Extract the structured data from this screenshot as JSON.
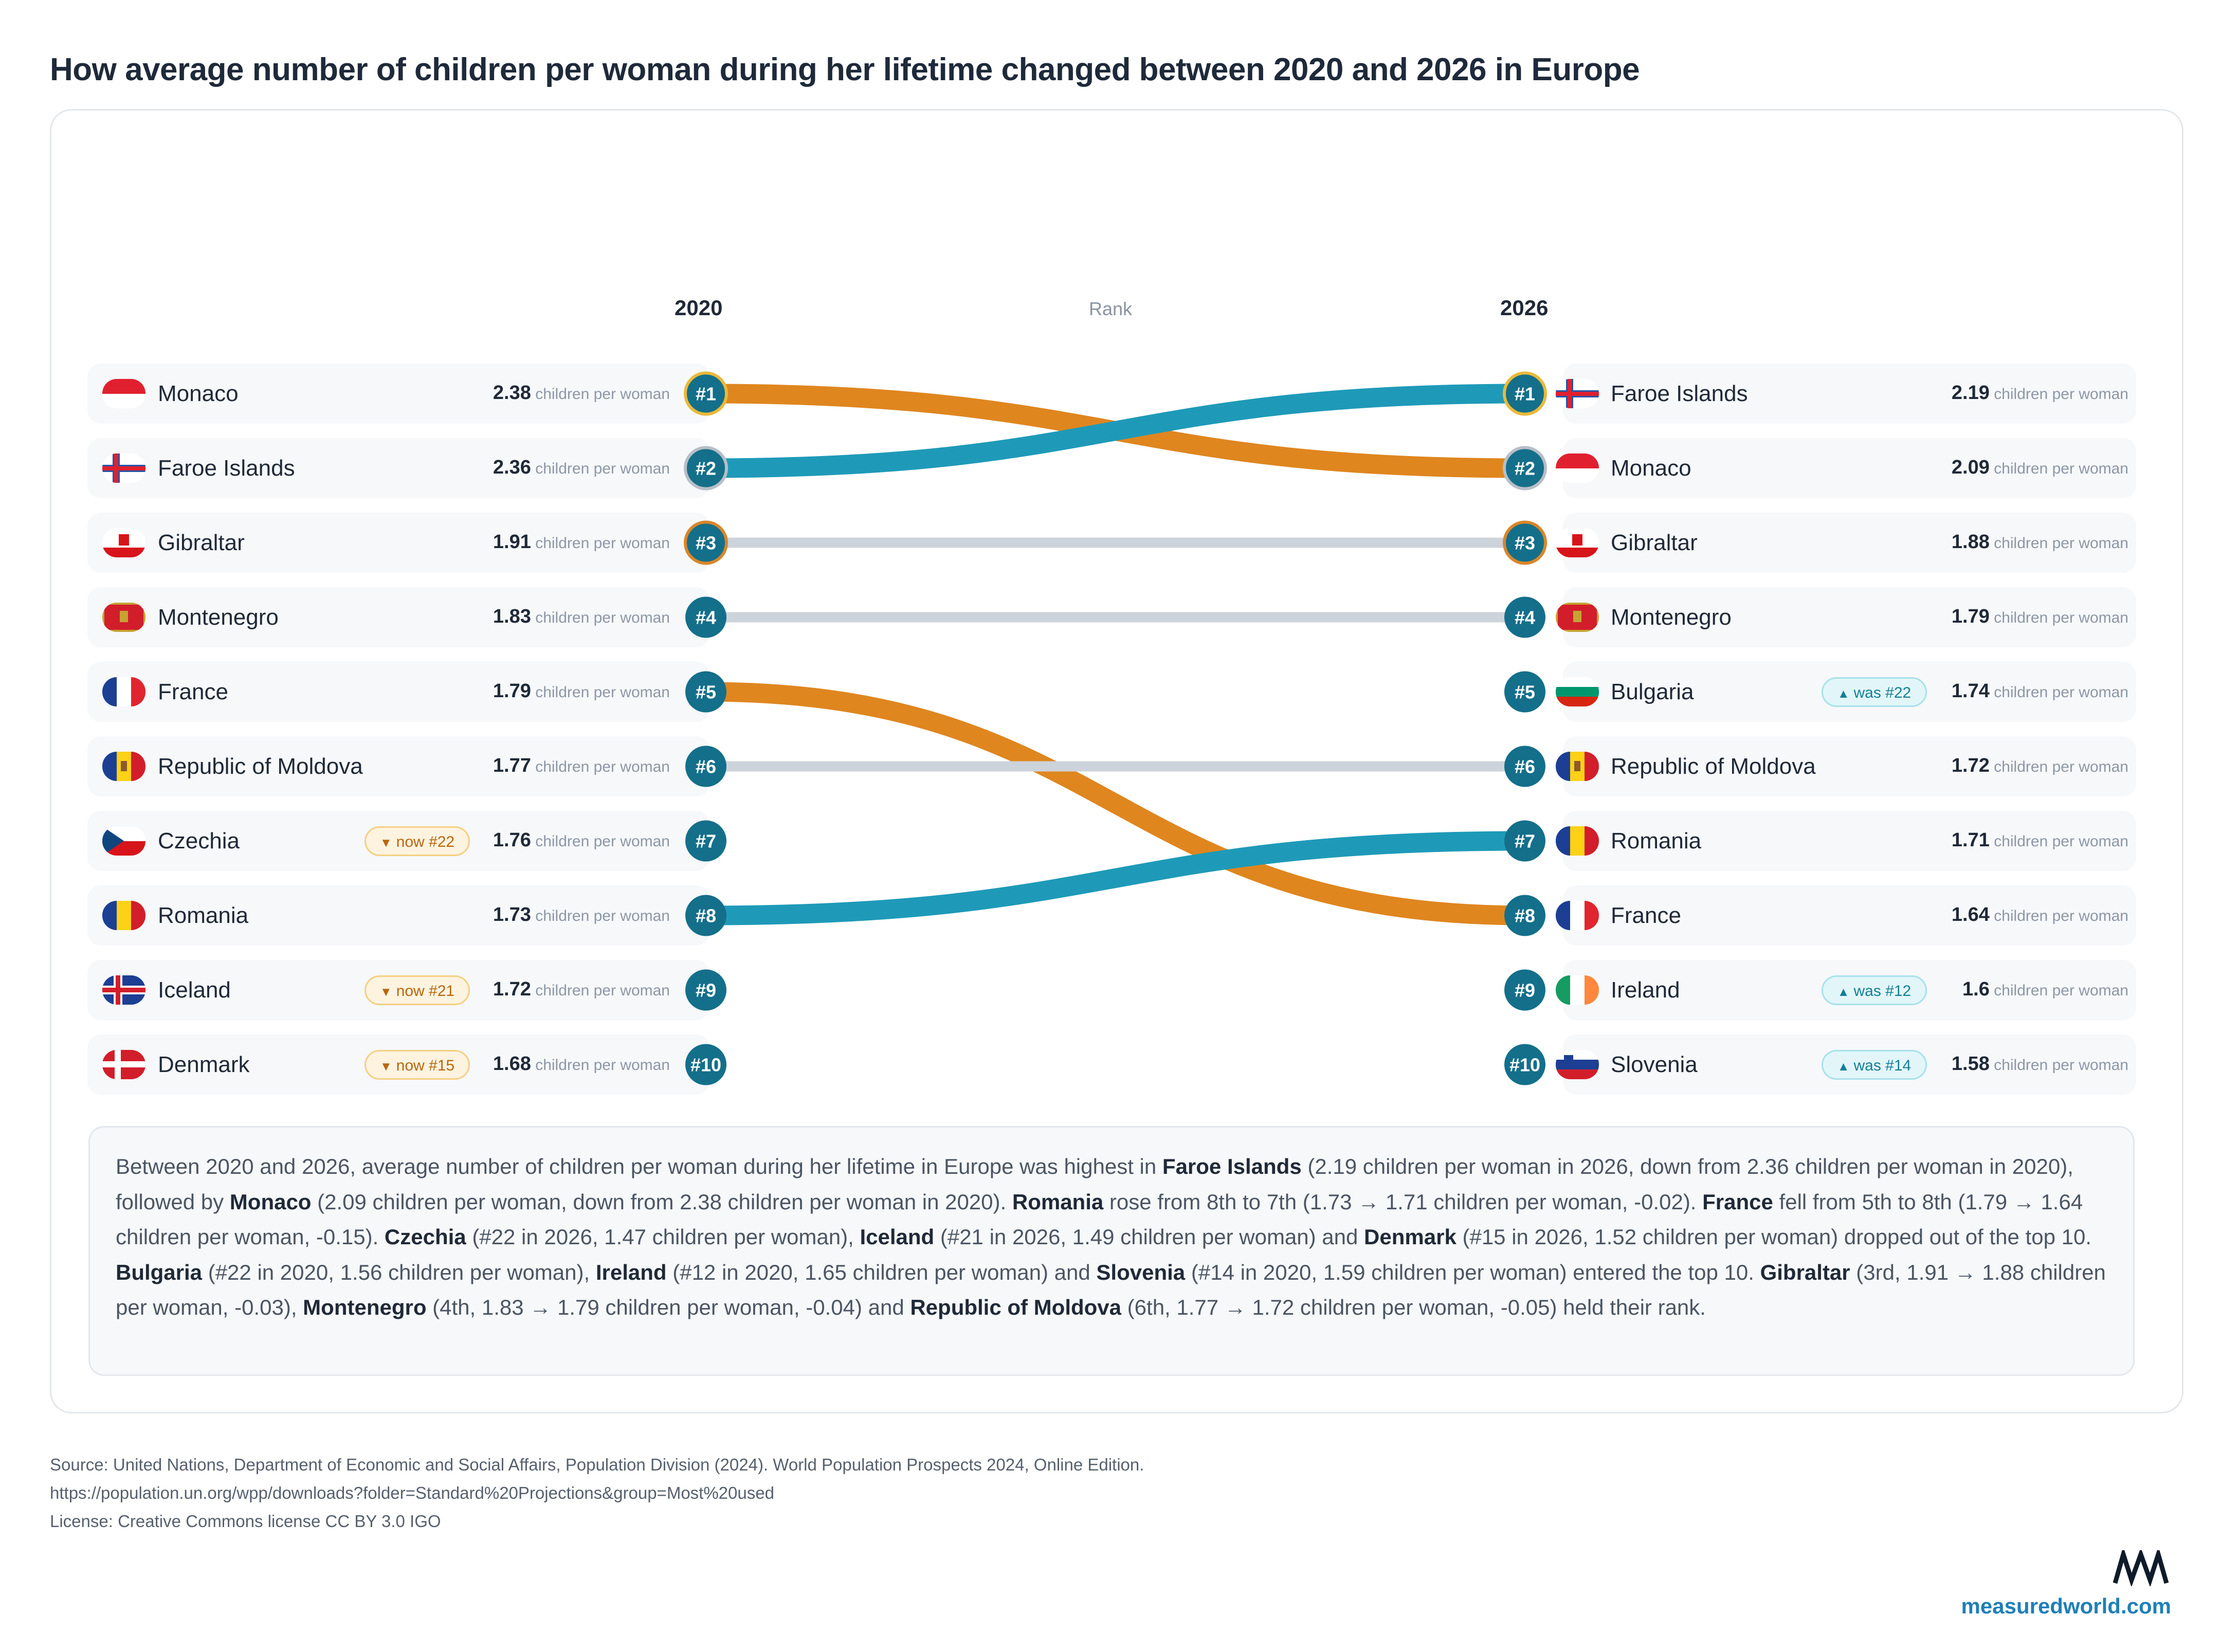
{
  "title": "How average number of children per woman during her lifetime changed between 2020 and 2026 in Europe",
  "colors": {
    "rise": "#1e9ab8",
    "fall": "#df861f",
    "hold": "#cdd3db",
    "badge": "#146f8a",
    "gold": "#e9b93a"
  },
  "chart_data": {
    "type": "bump",
    "left_year": "2020",
    "right_year": "2026",
    "rank_label": "Rank",
    "unit": "children per woman",
    "left": [
      {
        "rank": "#1",
        "country": "Monaco",
        "flag": "monaco-flag",
        "value": "2.38",
        "badge": ""
      },
      {
        "rank": "#2",
        "country": "Faroe Islands",
        "flag": "faroe-flag",
        "value": "2.36",
        "badge": ""
      },
      {
        "rank": "#3",
        "country": "Gibraltar",
        "flag": "gibraltar-flag",
        "value": "1.91",
        "badge": ""
      },
      {
        "rank": "#4",
        "country": "Montenegro",
        "flag": "montenegro-flag",
        "value": "1.83",
        "badge": ""
      },
      {
        "rank": "#5",
        "country": "France",
        "flag": "france-flag",
        "value": "1.79",
        "badge": ""
      },
      {
        "rank": "#6",
        "country": "Republic of Moldova",
        "flag": "moldova-flag",
        "value": "1.77",
        "badge": ""
      },
      {
        "rank": "#7",
        "country": "Czechia",
        "flag": "czechia-flag",
        "value": "1.76",
        "badge": "now #22"
      },
      {
        "rank": "#8",
        "country": "Romania",
        "flag": "romania-flag",
        "value": "1.73",
        "badge": ""
      },
      {
        "rank": "#9",
        "country": "Iceland",
        "flag": "iceland-flag",
        "value": "1.72",
        "badge": "now #21"
      },
      {
        "rank": "#10",
        "country": "Denmark",
        "flag": "denmark-flag",
        "value": "1.68",
        "badge": "now #15"
      }
    ],
    "right": [
      {
        "rank": "#1",
        "country": "Faroe Islands",
        "flag": "faroe-flag",
        "value": "2.19",
        "badge": ""
      },
      {
        "rank": "#2",
        "country": "Monaco",
        "flag": "monaco-flag",
        "value": "2.09",
        "badge": ""
      },
      {
        "rank": "#3",
        "country": "Gibraltar",
        "flag": "gibraltar-flag",
        "value": "1.88",
        "badge": ""
      },
      {
        "rank": "#4",
        "country": "Montenegro",
        "flag": "montenegro-flag",
        "value": "1.79",
        "badge": ""
      },
      {
        "rank": "#5",
        "country": "Bulgaria",
        "flag": "bulgaria-flag",
        "value": "1.74",
        "badge": "was #22"
      },
      {
        "rank": "#6",
        "country": "Republic of Moldova",
        "flag": "moldova-flag",
        "value": "1.72",
        "badge": ""
      },
      {
        "rank": "#7",
        "country": "Romania",
        "flag": "romania-flag",
        "value": "1.71",
        "badge": ""
      },
      {
        "rank": "#8",
        "country": "France",
        "flag": "france-flag",
        "value": "1.64",
        "badge": ""
      },
      {
        "rank": "#9",
        "country": "Ireland",
        "flag": "ireland-flag",
        "value": "1.6",
        "badge": "was #12"
      },
      {
        "rank": "#10",
        "country": "Slovenia",
        "flag": "slovenia-flag",
        "value": "1.58",
        "badge": "was #14"
      }
    ],
    "links": [
      {
        "country": "Monaco",
        "from": 1,
        "to": 2,
        "trend": "fall"
      },
      {
        "country": "Faroe Islands",
        "from": 2,
        "to": 1,
        "trend": "rise"
      },
      {
        "country": "Gibraltar",
        "from": 3,
        "to": 3,
        "trend": "hold"
      },
      {
        "country": "Montenegro",
        "from": 4,
        "to": 4,
        "trend": "hold"
      },
      {
        "country": "France",
        "from": 5,
        "to": 8,
        "trend": "fall"
      },
      {
        "country": "Republic of Moldova",
        "from": 6,
        "to": 6,
        "trend": "hold"
      },
      {
        "country": "Romania",
        "from": 8,
        "to": 7,
        "trend": "rise"
      }
    ]
  },
  "summary_html": "Between 2020 and 2026, average number of children per woman during her lifetime in Europe was highest in <b>Faroe Islands</b> (2.19 children per woman in 2026, down from 2.36 children per woman in 2020), followed by <b>Monaco</b> (2.09 children per woman, down from 2.38 children per woman in 2020). <b>Romania</b> rose from 8th to 7th (1.73 → 1.71 children per woman, -0.02). <b>France</b> fell from 5th to 8th (1.79 → 1.64 children per woman, -0.15). <b>Czechia</b> (#22 in 2026, 1.47 children per woman), <b>Iceland</b> (#21 in 2026, 1.49 children per woman) and <b>Denmark</b> (#15 in 2026, 1.52 children per woman) dropped out of the top 10. <b>Bulgaria</b> (#22 in 2020, 1.56 children per woman), <b>Ireland</b> (#12 in 2020, 1.65 children per woman) and <b>Slovenia</b> (#14 in 2020, 1.59 children per woman) entered the top 10. <b>Gibraltar</b> (3rd, 1.91 → 1.88 children per woman, -0.03), <b>Montenegro</b> (4th, 1.83 → 1.79 children per woman, -0.04) and <b>Republic of Moldova</b> (6th, 1.77 → 1.72 children per woman, -0.05) held their rank.",
  "footer": {
    "source": "Source: United Nations, Department of Economic and Social Affairs, Population Division (2024). World Population Prospects 2024, Online Edition.",
    "url": "https://population.un.org/wpp/downloads?folder=Standard%20Projections&group=Most%20used",
    "license": "License: Creative Commons license CC BY 3.0 IGO"
  },
  "brand": "measuredworld.com"
}
